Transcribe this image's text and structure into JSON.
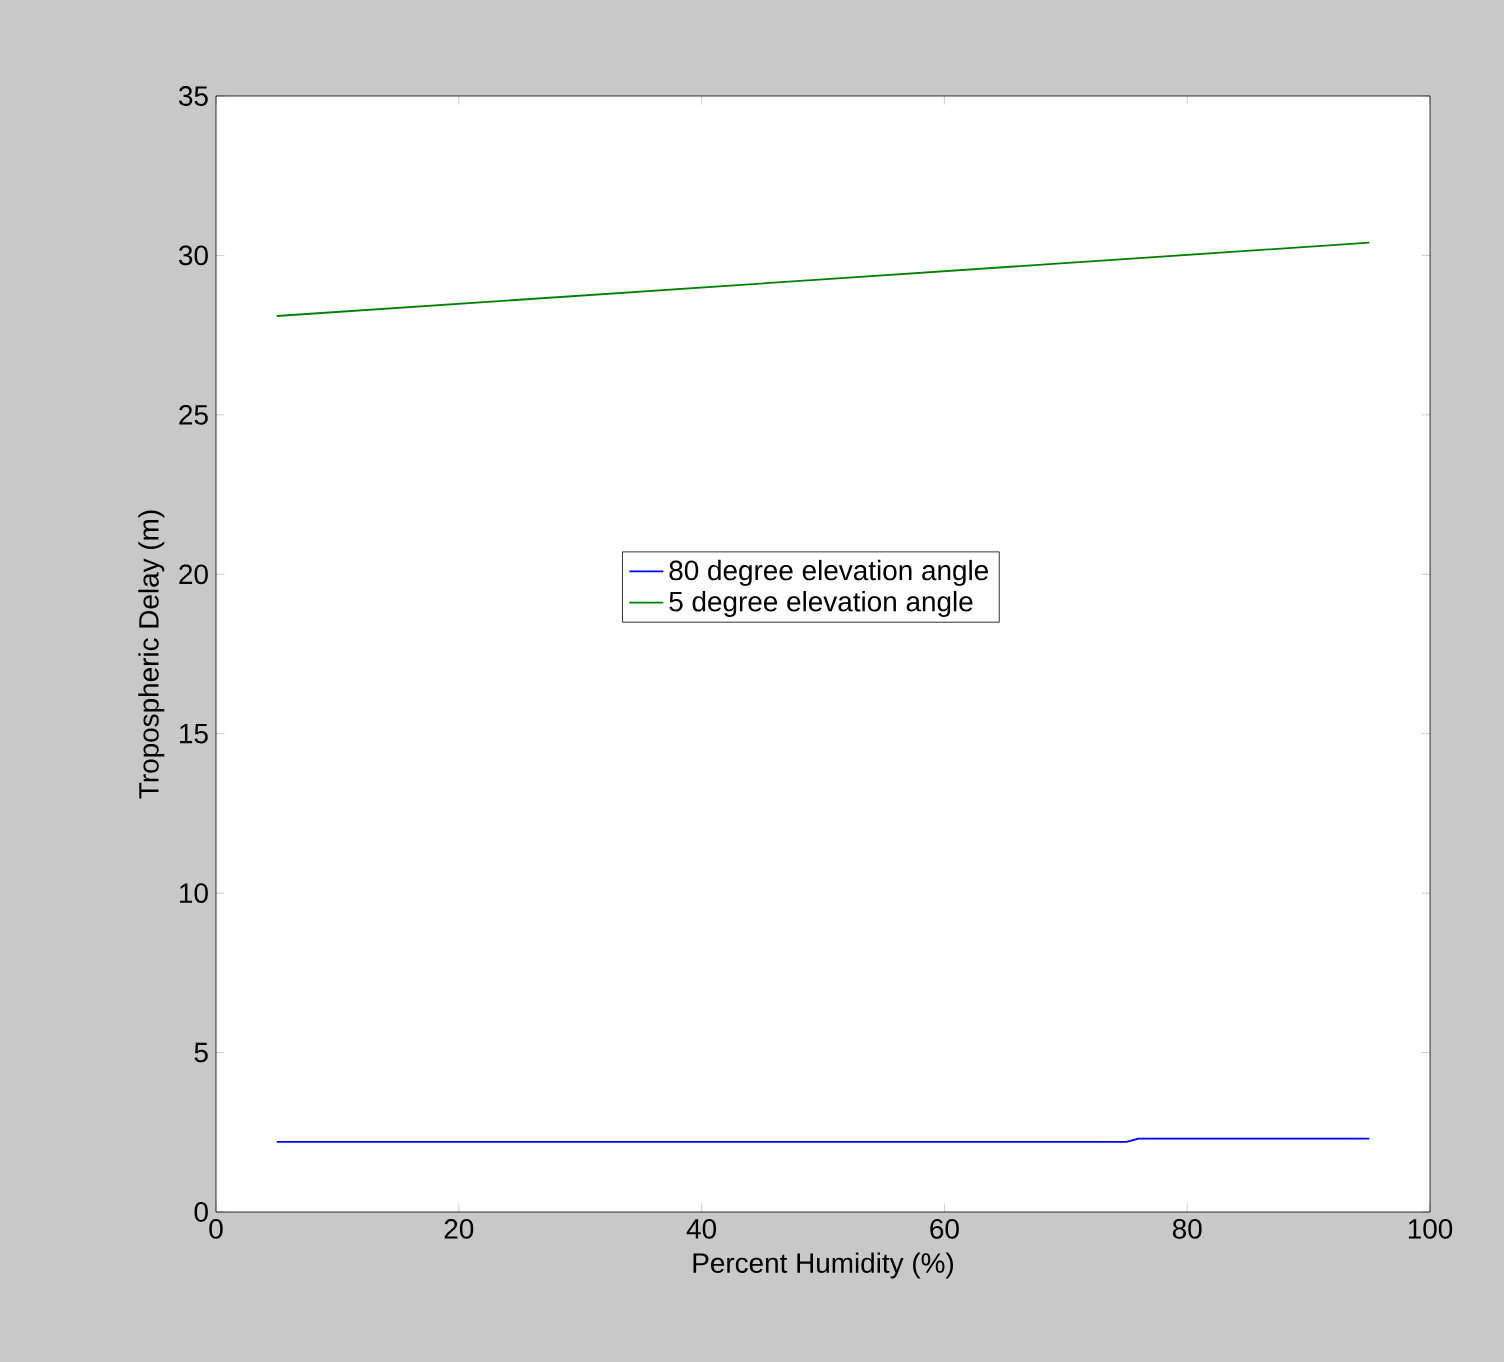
{
  "chart_data": {
    "type": "line",
    "xlabel": "Percent Humidity (%)",
    "ylabel": "Tropospheric Delay (m)",
    "series": [
      {
        "name": "80 degree elevation angle",
        "color": "#0000ff",
        "x": [
          5,
          75,
          76,
          95
        ],
        "values": [
          2.2,
          2.2,
          2.3,
          2.3
        ]
      },
      {
        "name": "5 degree elevation angle",
        "color": "#008000",
        "x": [
          5,
          50,
          95
        ],
        "values": [
          28.1,
          29.25,
          30.4
        ]
      }
    ],
    "xlim": [
      0,
      100
    ],
    "ylim": [
      0,
      35
    ],
    "xticks": [
      0,
      20,
      40,
      60,
      80,
      100
    ],
    "yticks": [
      0,
      5,
      10,
      15,
      20,
      25,
      30,
      35
    ],
    "grid": false,
    "legend": "center",
    "marker": "none",
    "line_style": "solid"
  }
}
